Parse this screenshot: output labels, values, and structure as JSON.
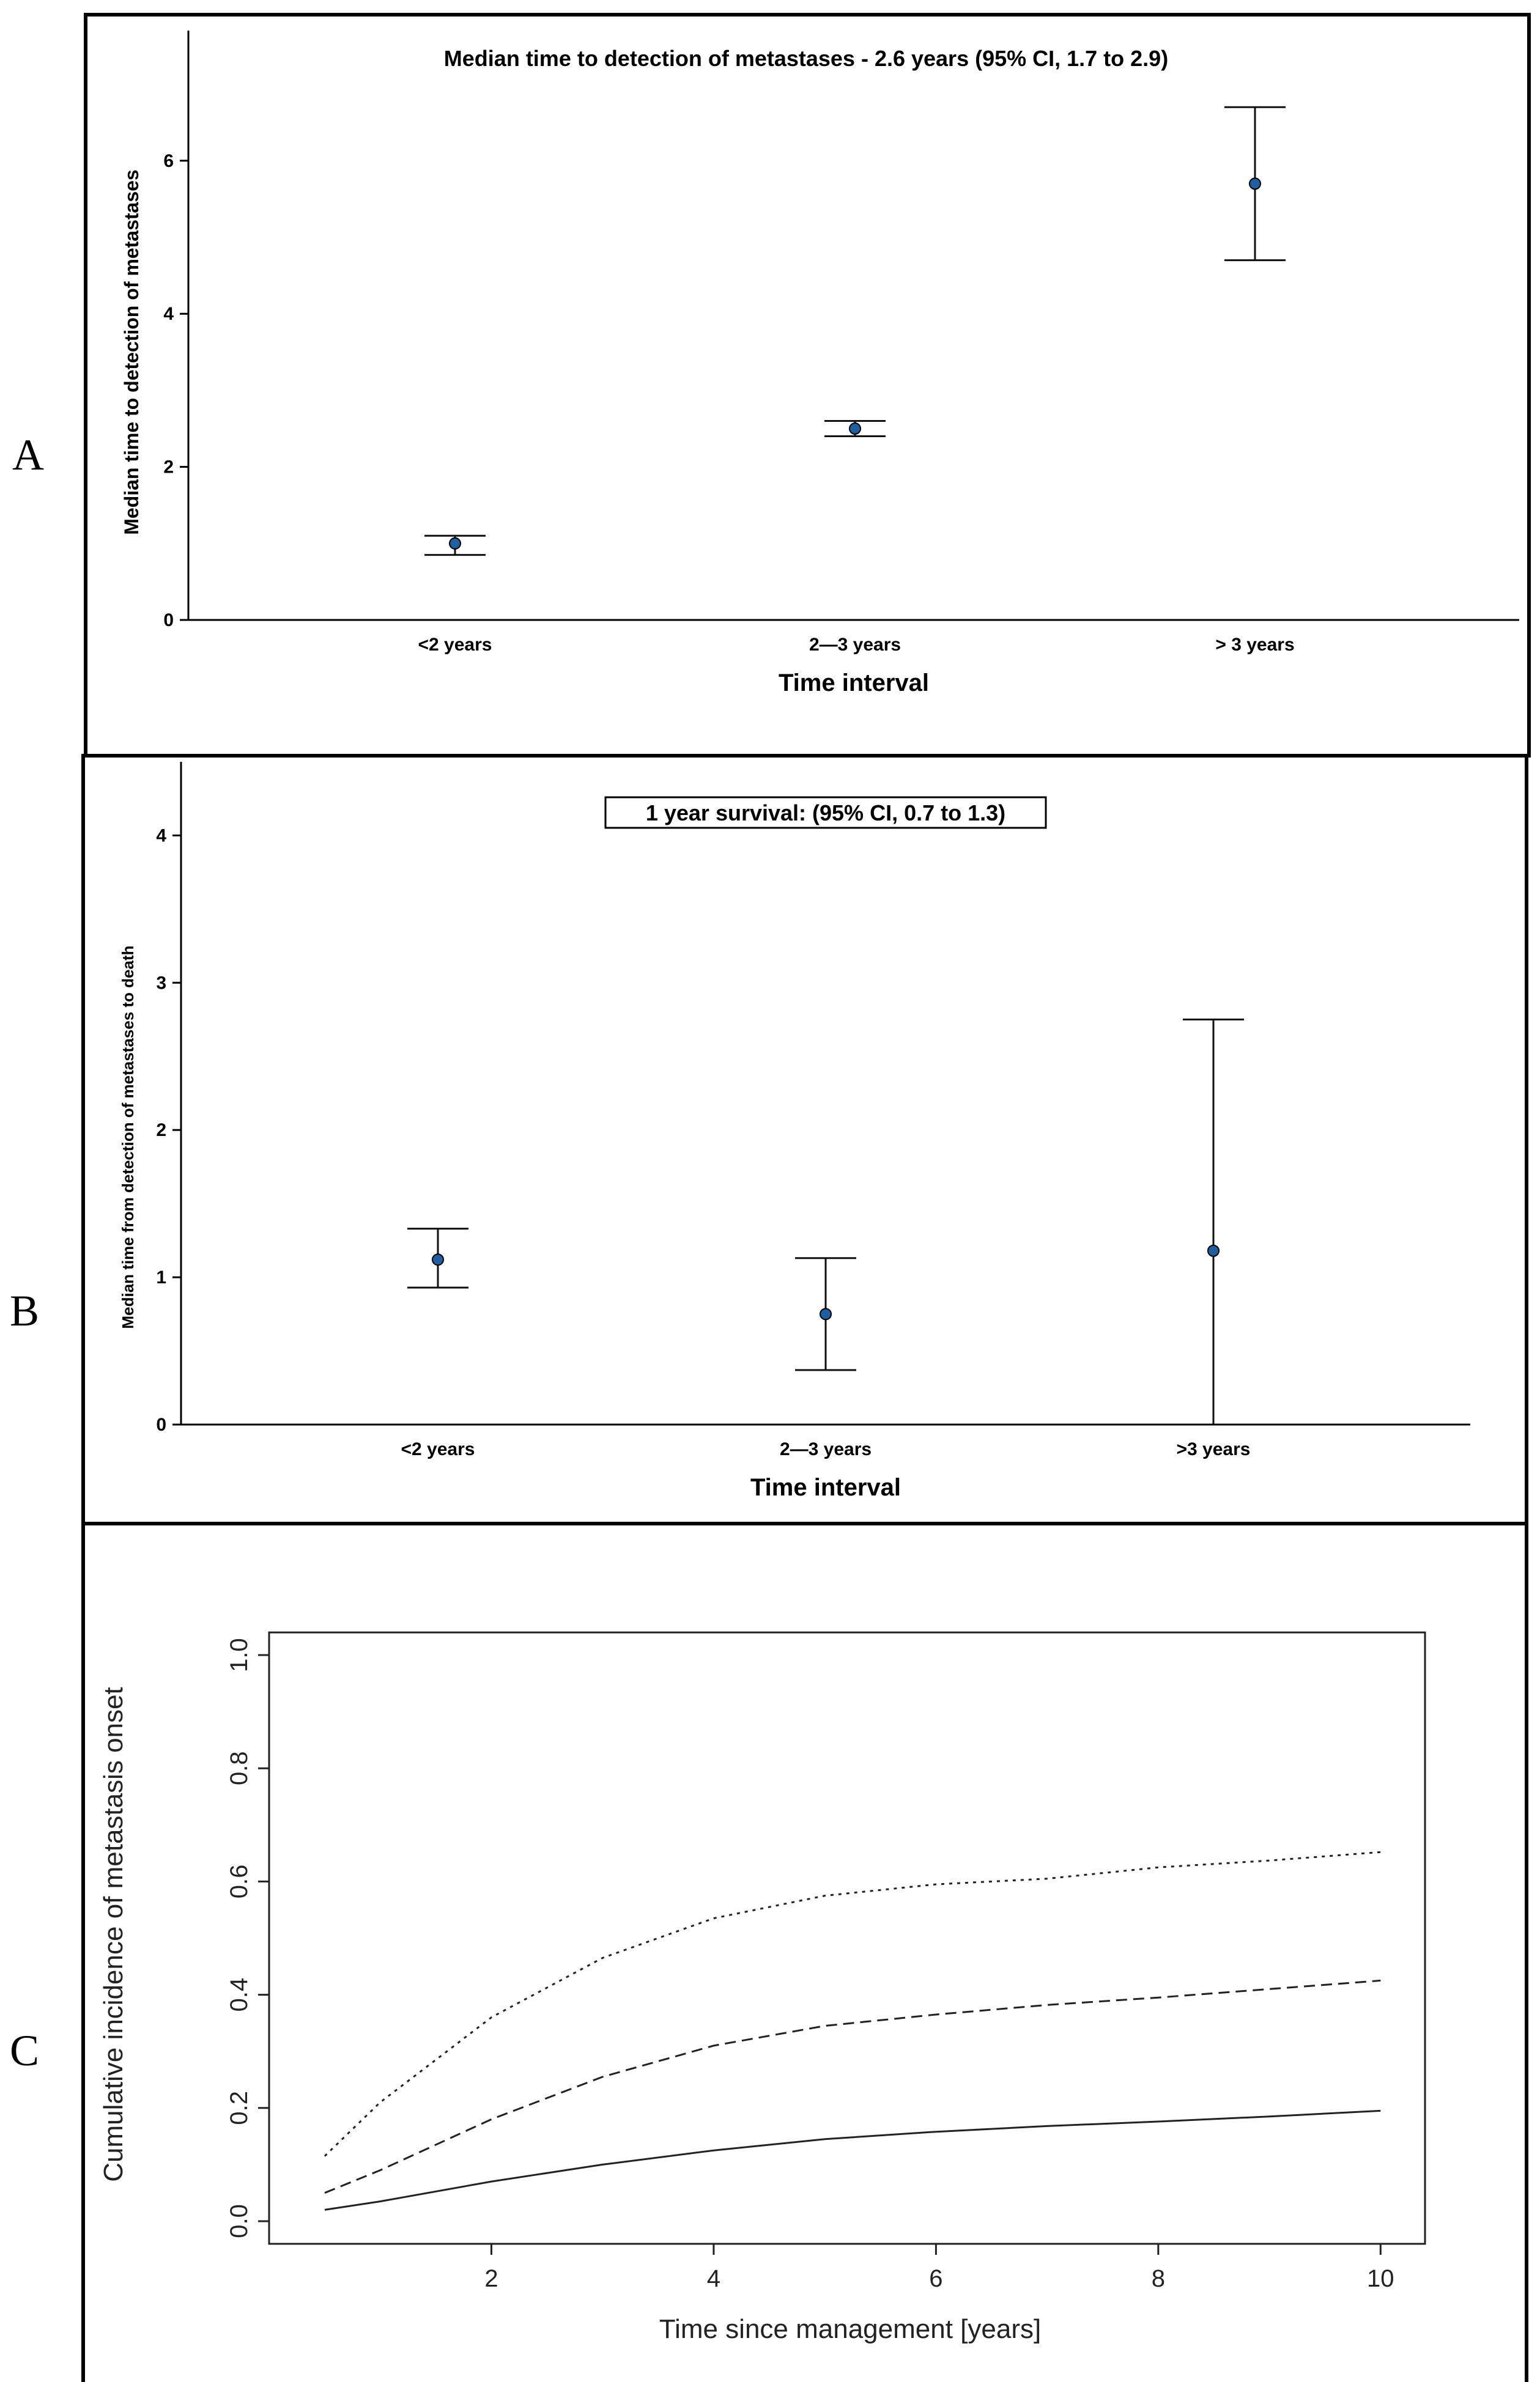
{
  "panels": {
    "a": {
      "letter": "A"
    },
    "b": {
      "letter": "B"
    },
    "c": {
      "letter": "C"
    }
  },
  "chart_data": [
    {
      "id": "A",
      "type": "scatter",
      "title": "Median time to detection of metastases - 2.6 years (95% CI, 1.7 to 2.9)",
      "xlabel": "Time interval",
      "ylabel": "Median time to detection of metastases",
      "categories": [
        "<2 years",
        "2—3 years",
        "> 3 years"
      ],
      "values": [
        1.0,
        2.5,
        5.7
      ],
      "ci_lower": [
        0.85,
        2.4,
        4.7
      ],
      "ci_upper": [
        1.1,
        2.6,
        6.7
      ],
      "yticks": [
        0,
        2,
        4,
        6
      ],
      "ylim": [
        0,
        7.7
      ],
      "grid": false,
      "point_color": "#1f5fa0"
    },
    {
      "id": "B",
      "type": "scatter",
      "title": "1 year survival: (95% CI, 0.7 to 1.3)",
      "xlabel": "Time interval",
      "ylabel": "Median time from detection of metastases to death",
      "categories": [
        "<2 years",
        "2—3 years",
        ">3 years"
      ],
      "values": [
        1.12,
        0.75,
        1.18
      ],
      "ci_lower": [
        0.93,
        0.37,
        0.0
      ],
      "ci_upper": [
        1.33,
        1.13,
        2.75
      ],
      "yticks": [
        0,
        1,
        2,
        3,
        4
      ],
      "ylim": [
        0,
        4.5
      ],
      "grid": false,
      "point_color": "#1f5fa0"
    },
    {
      "id": "C",
      "type": "line",
      "xlabel": "Time since management [years]",
      "ylabel": "Cumulative incidence of metastasis onset",
      "xticks": [
        2,
        4,
        6,
        8,
        10
      ],
      "yticks": [
        "0.0",
        "0.2",
        "0.4",
        "0.6",
        "0.8",
        "1.0"
      ],
      "xlim": [
        0,
        10.4
      ],
      "ylim": [
        -0.04,
        1.04
      ],
      "grid": false,
      "series": [
        {
          "style": "solid",
          "x": [
            0.5,
            1,
            2,
            3,
            4,
            5,
            6,
            7,
            8,
            9,
            10
          ],
          "y": [
            0.02,
            0.035,
            0.07,
            0.1,
            0.125,
            0.145,
            0.158,
            0.168,
            0.176,
            0.185,
            0.195
          ]
        },
        {
          "style": "dashed",
          "x": [
            0.5,
            1,
            2,
            3,
            4,
            5,
            6,
            7,
            8,
            9,
            10
          ],
          "y": [
            0.05,
            0.09,
            0.18,
            0.255,
            0.31,
            0.345,
            0.365,
            0.382,
            0.395,
            0.41,
            0.425
          ]
        },
        {
          "style": "dotted",
          "x": [
            0.5,
            1,
            2,
            3,
            4,
            5,
            6,
            7,
            8,
            9,
            10
          ],
          "y": [
            0.115,
            0.21,
            0.36,
            0.465,
            0.535,
            0.575,
            0.595,
            0.605,
            0.625,
            0.637,
            0.652
          ]
        }
      ]
    }
  ]
}
